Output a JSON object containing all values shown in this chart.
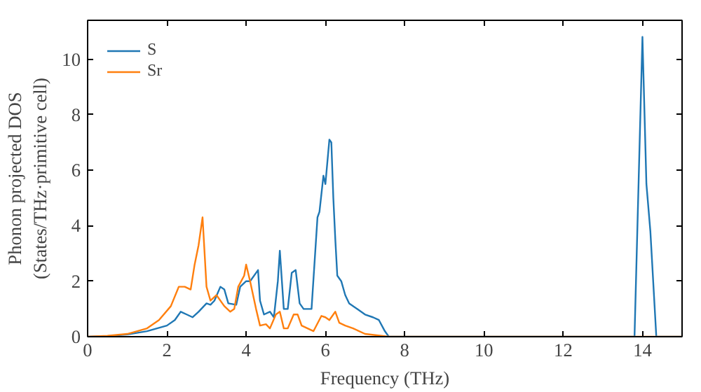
{
  "chart_data": {
    "type": "line",
    "xlabel": "Frequency (THz)",
    "ylabel": "Phonon projected DOS\n(States/THz·primitive cell)",
    "xlim": [
      0,
      15
    ],
    "ylim": [
      0,
      11.4
    ],
    "xticks": [
      0,
      2,
      4,
      6,
      8,
      10,
      12,
      14
    ],
    "yticks": [
      0,
      2,
      4,
      6,
      8,
      10
    ],
    "grid": false,
    "legend": "top left",
    "series": [
      {
        "name": "S",
        "color": "#1f77b4",
        "x": [
          0,
          0.5,
          1,
          1.5,
          2,
          2.2,
          2.35,
          2.5,
          2.65,
          2.8,
          3.0,
          3.1,
          3.2,
          3.35,
          3.45,
          3.55,
          3.75,
          3.85,
          4.0,
          4.1,
          4.3,
          4.35,
          4.45,
          4.6,
          4.7,
          4.8,
          4.85,
          4.95,
          5.05,
          5.15,
          5.25,
          5.35,
          5.45,
          5.55,
          5.65,
          5.75,
          5.8,
          5.85,
          5.95,
          6.0,
          6.1,
          6.15,
          6.2,
          6.25,
          6.3,
          6.4,
          6.5,
          6.6,
          6.8,
          7.0,
          7.2,
          7.35,
          7.5,
          7.6,
          13.8,
          14.0,
          14.1,
          14.2,
          14.35,
          15
        ],
        "values": [
          0,
          0.02,
          0.08,
          0.2,
          0.4,
          0.6,
          0.9,
          0.8,
          0.7,
          0.9,
          1.2,
          1.15,
          1.3,
          1.8,
          1.7,
          1.2,
          1.15,
          1.8,
          2.0,
          2.0,
          2.4,
          1.3,
          0.8,
          0.9,
          0.7,
          2.0,
          3.1,
          1.0,
          1.0,
          2.3,
          2.4,
          1.2,
          1.0,
          1.0,
          1.0,
          3.2,
          4.3,
          4.5,
          5.8,
          5.5,
          7.1,
          7.0,
          5.0,
          3.5,
          2.2,
          2.0,
          1.5,
          1.2,
          1.0,
          0.8,
          0.7,
          0.6,
          0.2,
          0,
          0,
          10.8,
          5.5,
          3.8,
          0,
          0
        ]
      },
      {
        "name": "Sr",
        "color": "#ff7f0e",
        "x": [
          0,
          0.5,
          1,
          1.5,
          1.8,
          2.1,
          2.3,
          2.45,
          2.6,
          2.7,
          2.8,
          2.9,
          3.0,
          3.1,
          3.25,
          3.45,
          3.6,
          3.7,
          3.8,
          3.95,
          4.0,
          4.1,
          4.25,
          4.35,
          4.5,
          4.6,
          4.75,
          4.85,
          4.95,
          5.05,
          5.2,
          5.3,
          5.4,
          5.7,
          5.9,
          6.0,
          6.1,
          6.25,
          6.35,
          6.5,
          6.7,
          7.0,
          7.3,
          7.6,
          15
        ],
        "values": [
          0,
          0.03,
          0.1,
          0.3,
          0.6,
          1.1,
          1.8,
          1.8,
          1.7,
          2.6,
          3.3,
          4.3,
          1.8,
          1.3,
          1.5,
          1.1,
          0.9,
          1.0,
          1.8,
          2.2,
          2.6,
          2.0,
          1.0,
          0.4,
          0.45,
          0.3,
          0.8,
          0.9,
          0.3,
          0.3,
          0.8,
          0.8,
          0.4,
          0.2,
          0.75,
          0.7,
          0.6,
          0.9,
          0.5,
          0.4,
          0.3,
          0.1,
          0.05,
          0,
          0
        ]
      }
    ]
  }
}
